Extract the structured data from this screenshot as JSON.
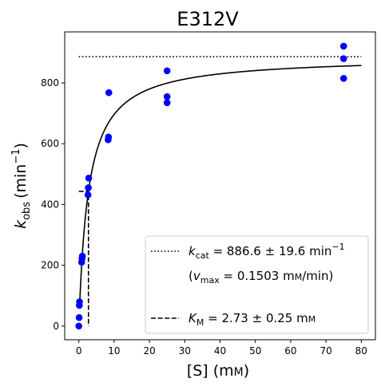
{
  "chart_data": {
    "type": "scatter",
    "title": "E312V",
    "xlabel": {
      "main": "[S] (m",
      "unit_smallcaps": "M",
      "close": ")"
    },
    "ylabel": {
      "k": "k",
      "sub": "obs",
      "unit": "(min",
      "sup": "−1",
      "close": ")"
    },
    "xlim": [
      -4,
      84
    ],
    "ylim": [
      -45,
      968
    ],
    "xticks": [
      0,
      10,
      20,
      30,
      40,
      50,
      60,
      70,
      80
    ],
    "yticks": [
      0,
      200,
      400,
      600,
      800
    ],
    "points": [
      {
        "x": 0,
        "y": 0
      },
      {
        "x": 0.1,
        "y": 28
      },
      {
        "x": 0.15,
        "y": 68
      },
      {
        "x": 0.2,
        "y": 80
      },
      {
        "x": 0.8,
        "y": 210
      },
      {
        "x": 0.9,
        "y": 222
      },
      {
        "x": 1.0,
        "y": 230
      },
      {
        "x": 2.6,
        "y": 432
      },
      {
        "x": 2.7,
        "y": 455
      },
      {
        "x": 2.8,
        "y": 487
      },
      {
        "x": 8.3,
        "y": 613
      },
      {
        "x": 8.4,
        "y": 622
      },
      {
        "x": 8.5,
        "y": 768
      },
      {
        "x": 25,
        "y": 735
      },
      {
        "x": 25,
        "y": 755
      },
      {
        "x": 25,
        "y": 840
      },
      {
        "x": 75,
        "y": 815
      },
      {
        "x": 75,
        "y": 880
      },
      {
        "x": 75,
        "y": 921
      }
    ],
    "point_color": "#0000ff",
    "fit": {
      "kcat": 886.6,
      "Km": 2.73,
      "x_range": [
        0.3,
        80
      ],
      "color": "#000000"
    },
    "kcat_line": {
      "y": 886.6,
      "x_range": [
        0,
        80
      ]
    },
    "km_marker": {
      "x": 2.73,
      "y": 443.3,
      "x_start": 0
    },
    "legend": {
      "position": "lower-right",
      "kcat": {
        "k": "k",
        "sub": "cat",
        "text": " = 886.6 ± 19.6 min",
        "sup": "−1"
      },
      "vmax": {
        "open": "(",
        "v": "v",
        "sub": "max",
        "text": " = 0.1503 m",
        "unit_smallcaps": "M",
        "close": "/min)"
      },
      "km": {
        "k": "K",
        "sub": "M",
        "text": " = 2.73 ± 0.25 m",
        "unit_smallcaps": "M"
      }
    }
  }
}
